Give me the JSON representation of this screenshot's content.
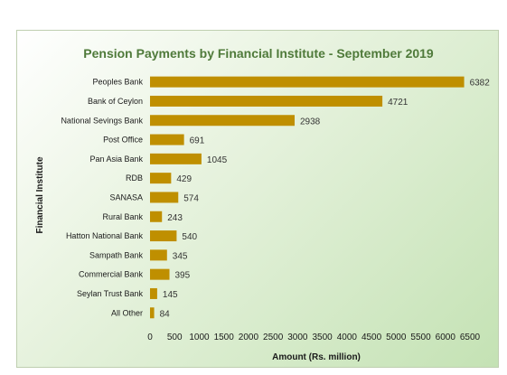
{
  "chart_data": {
    "type": "bar",
    "orientation": "horizontal",
    "title": "Pension Payments by Financial  Institute - September 2019",
    "xlabel": "Amount (Rs. million)",
    "ylabel": "Financial  Institute",
    "categories": [
      "Peoples Bank",
      "Bank of Ceylon",
      "National Sevings Bank",
      "Post Office",
      "Pan Asia Bank",
      "RDB",
      "SANASA",
      "Rural Bank",
      "Hatton National Bank",
      "Sampath Bank",
      "Commercial Bank",
      "Seylan Trust Bank",
      "All Other"
    ],
    "values": [
      6382,
      4721,
      2938,
      691,
      1045,
      429,
      574,
      243,
      540,
      345,
      395,
      145,
      84
    ],
    "xlim": [
      0,
      6500
    ],
    "xticks": [
      0,
      500,
      1000,
      1500,
      2000,
      2500,
      3000,
      3500,
      4000,
      4500,
      5000,
      5500,
      6000,
      6500
    ],
    "grid": false,
    "legend": "none",
    "colors": {
      "bar": "#bf8f00",
      "title": "#4f7a3a"
    }
  }
}
